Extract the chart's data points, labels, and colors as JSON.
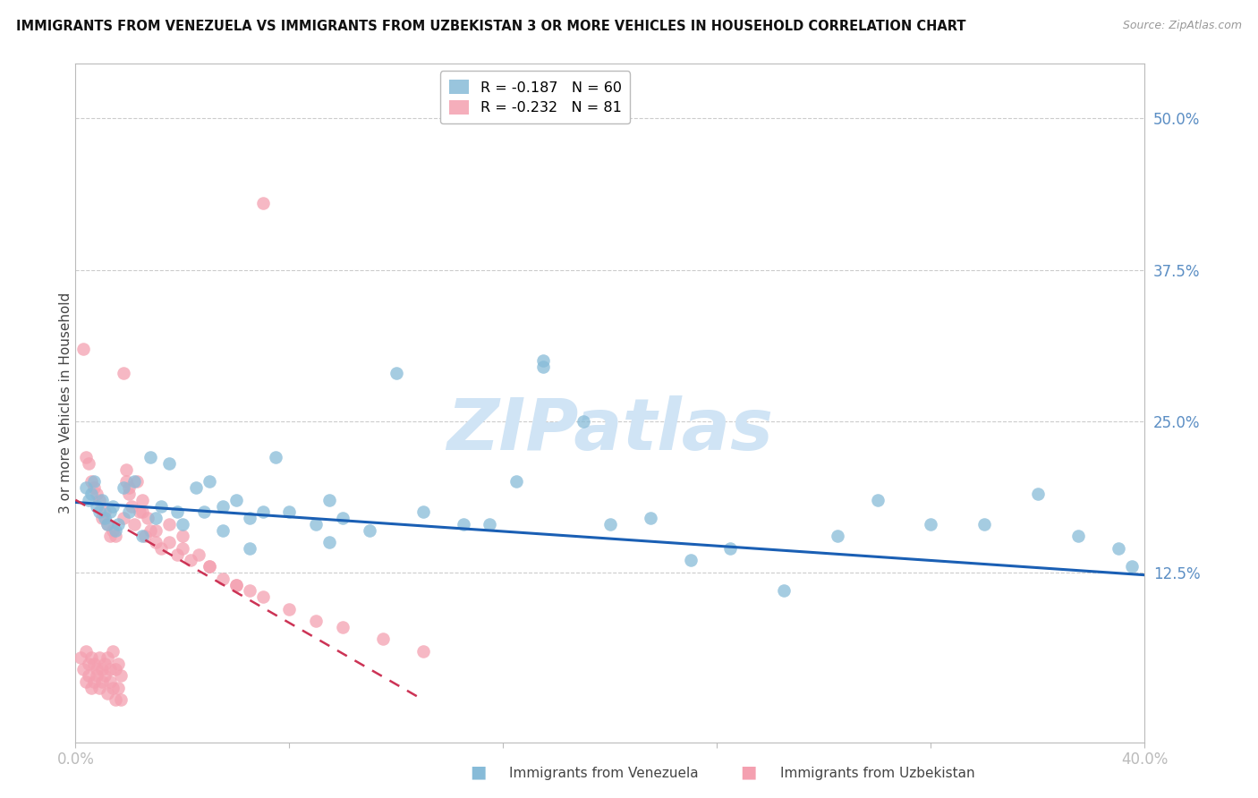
{
  "title": "IMMIGRANTS FROM VENEZUELA VS IMMIGRANTS FROM UZBEKISTAN 3 OR MORE VEHICLES IN HOUSEHOLD CORRELATION CHART",
  "source": "Source: ZipAtlas.com",
  "ylabel": "3 or more Vehicles in Household",
  "ytick_labels": [
    "50.0%",
    "37.5%",
    "25.0%",
    "12.5%"
  ],
  "ytick_values": [
    0.5,
    0.375,
    0.25,
    0.125
  ],
  "xmin": 0.0,
  "xmax": 0.4,
  "ymin": -0.015,
  "ymax": 0.545,
  "venezuela_color": "#87bbd8",
  "uzbekistan_color": "#f4a0b0",
  "trendline_venezuela_color": "#1a5fb4",
  "trendline_uzbekistan_color": "#cc3355",
  "watermark": "ZIPatlas",
  "watermark_color": "#d0e4f5",
  "background_color": "#ffffff",
  "grid_color": "#cccccc",
  "axis_label_color": "#5b8ec4",
  "legend_r1": "R = -0.187",
  "legend_n1": "N = 60",
  "legend_r2": "R = -0.232",
  "legend_n2": "N = 81",
  "venezuela_x": [
    0.004,
    0.005,
    0.006,
    0.007,
    0.008,
    0.009,
    0.01,
    0.011,
    0.012,
    0.013,
    0.014,
    0.015,
    0.016,
    0.018,
    0.02,
    0.022,
    0.025,
    0.028,
    0.03,
    0.032,
    0.035,
    0.038,
    0.04,
    0.045,
    0.048,
    0.05,
    0.055,
    0.06,
    0.065,
    0.07,
    0.075,
    0.08,
    0.09,
    0.095,
    0.1,
    0.11,
    0.12,
    0.13,
    0.145,
    0.155,
    0.165,
    0.175,
    0.19,
    0.2,
    0.215,
    0.23,
    0.245,
    0.265,
    0.285,
    0.3,
    0.32,
    0.34,
    0.36,
    0.375,
    0.39,
    0.395,
    0.175,
    0.095,
    0.065,
    0.055
  ],
  "venezuela_y": [
    0.195,
    0.185,
    0.19,
    0.2,
    0.18,
    0.175,
    0.185,
    0.17,
    0.165,
    0.175,
    0.18,
    0.16,
    0.165,
    0.195,
    0.175,
    0.2,
    0.155,
    0.22,
    0.17,
    0.18,
    0.215,
    0.175,
    0.165,
    0.195,
    0.175,
    0.2,
    0.18,
    0.185,
    0.17,
    0.175,
    0.22,
    0.175,
    0.165,
    0.185,
    0.17,
    0.16,
    0.29,
    0.175,
    0.165,
    0.165,
    0.2,
    0.295,
    0.25,
    0.165,
    0.17,
    0.135,
    0.145,
    0.11,
    0.155,
    0.185,
    0.165,
    0.165,
    0.19,
    0.155,
    0.145,
    0.13,
    0.3,
    0.15,
    0.145,
    0.16
  ],
  "uzbekistan_x": [
    0.002,
    0.003,
    0.004,
    0.004,
    0.005,
    0.005,
    0.006,
    0.006,
    0.007,
    0.007,
    0.008,
    0.008,
    0.009,
    0.009,
    0.01,
    0.01,
    0.011,
    0.011,
    0.012,
    0.012,
    0.013,
    0.013,
    0.014,
    0.014,
    0.015,
    0.015,
    0.016,
    0.016,
    0.017,
    0.017,
    0.018,
    0.018,
    0.019,
    0.019,
    0.02,
    0.021,
    0.022,
    0.023,
    0.024,
    0.025,
    0.026,
    0.027,
    0.028,
    0.03,
    0.032,
    0.035,
    0.038,
    0.04,
    0.043,
    0.046,
    0.05,
    0.055,
    0.06,
    0.065,
    0.07,
    0.08,
    0.09,
    0.1,
    0.115,
    0.13,
    0.003,
    0.004,
    0.005,
    0.006,
    0.007,
    0.008,
    0.009,
    0.01,
    0.011,
    0.012,
    0.013,
    0.014,
    0.015,
    0.02,
    0.025,
    0.03,
    0.035,
    0.04,
    0.05,
    0.06,
    0.07
  ],
  "uzbekistan_y": [
    0.055,
    0.045,
    0.06,
    0.035,
    0.05,
    0.04,
    0.055,
    0.03,
    0.05,
    0.035,
    0.045,
    0.04,
    0.055,
    0.03,
    0.045,
    0.035,
    0.05,
    0.04,
    0.055,
    0.025,
    0.045,
    0.035,
    0.06,
    0.03,
    0.045,
    0.02,
    0.05,
    0.03,
    0.04,
    0.02,
    0.29,
    0.17,
    0.2,
    0.21,
    0.19,
    0.18,
    0.165,
    0.2,
    0.175,
    0.185,
    0.155,
    0.17,
    0.16,
    0.15,
    0.145,
    0.165,
    0.14,
    0.155,
    0.135,
    0.14,
    0.13,
    0.12,
    0.115,
    0.11,
    0.105,
    0.095,
    0.085,
    0.08,
    0.07,
    0.06,
    0.31,
    0.22,
    0.215,
    0.2,
    0.195,
    0.19,
    0.185,
    0.17,
    0.175,
    0.165,
    0.155,
    0.16,
    0.155,
    0.195,
    0.175,
    0.16,
    0.15,
    0.145,
    0.13,
    0.115,
    0.43
  ]
}
